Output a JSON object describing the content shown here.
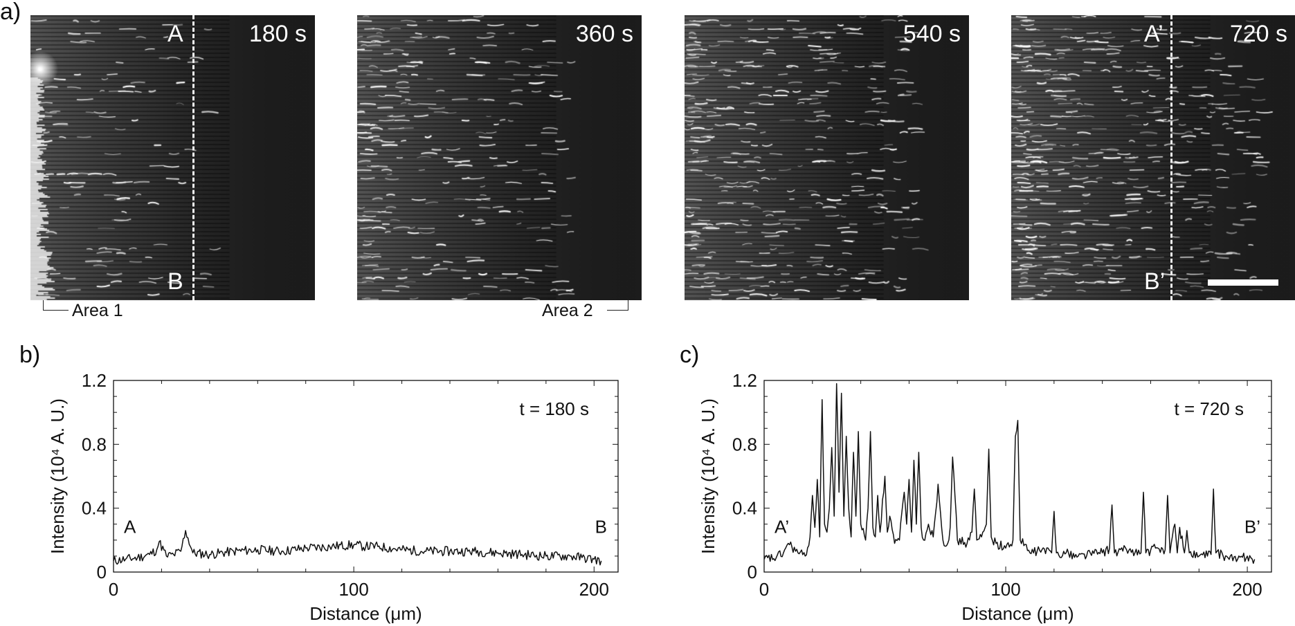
{
  "panel_labels": {
    "a": "a)",
    "b": "b)",
    "c": "c)"
  },
  "micrographs": [
    {
      "time": "180 s",
      "top_marker": "A",
      "bottom_marker": "B",
      "dashed_line": true
    },
    {
      "time": "360 s"
    },
    {
      "time": "540 s"
    },
    {
      "time": "720 s",
      "top_marker": "A’",
      "bottom_marker": "B’",
      "dashed_line": true,
      "scale_bar": true
    }
  ],
  "area_labels": {
    "area1": "Area 1",
    "area2": "Area 2"
  },
  "colors": {
    "micrograph_background": "#1c1c1c",
    "feature": "#ffffff",
    "line": "#111111"
  },
  "chart_data": [
    {
      "type": "line",
      "panel": "b)",
      "annotation": "t = 180 s",
      "xlabel": "Distance (μm)",
      "ylabel": "Intensity (10⁴ A. U.)",
      "xlim": [
        0,
        210
      ],
      "ylim": [
        0,
        1.2
      ],
      "xticks": [
        "0",
        "100",
        "200"
      ],
      "yticks": [
        "0",
        "0.4",
        "0.8",
        "1.2"
      ],
      "end_labels": {
        "start": "A",
        "end": "B"
      },
      "grid": false,
      "series": [
        {
          "x": [
            0,
            5,
            10,
            15,
            18,
            19,
            22,
            25,
            28,
            30,
            33,
            40,
            50,
            60,
            70,
            80,
            90,
            100,
            105,
            110,
            120,
            130,
            140,
            150,
            160,
            170,
            180,
            190,
            195,
            200,
            203
          ],
          "y": [
            0.07,
            0.08,
            0.09,
            0.11,
            0.14,
            0.19,
            0.1,
            0.11,
            0.13,
            0.26,
            0.12,
            0.11,
            0.13,
            0.14,
            0.13,
            0.15,
            0.16,
            0.17,
            0.16,
            0.16,
            0.14,
            0.13,
            0.13,
            0.13,
            0.12,
            0.11,
            0.1,
            0.1,
            0.09,
            0.08,
            0.07
          ]
        }
      ]
    },
    {
      "type": "line",
      "panel": "c)",
      "annotation": "t = 720 s",
      "xlabel": "Distance (μm)",
      "ylabel": "Intensity (10⁴ A. U.)",
      "xlim": [
        0,
        210
      ],
      "ylim": [
        0,
        1.2
      ],
      "xticks": [
        "0",
        "100",
        "200"
      ],
      "yticks": [
        "0",
        "0.4",
        "0.8",
        "1.2"
      ],
      "end_labels": {
        "start": "A’",
        "end": "B’"
      },
      "grid": false,
      "series": [
        {
          "x": [
            0,
            5,
            8,
            10,
            14,
            17,
            19,
            20,
            21,
            22,
            23,
            24,
            25,
            26,
            27,
            28,
            29,
            30,
            31,
            32,
            33,
            34,
            35,
            36,
            37,
            38,
            39,
            40,
            42,
            43,
            44,
            45,
            46,
            47,
            48,
            50,
            51,
            52,
            54,
            56,
            58,
            59,
            60,
            61,
            62,
            63,
            64,
            65,
            66,
            68,
            70,
            72,
            74,
            76,
            77,
            78,
            80,
            84,
            86,
            87,
            88,
            90,
            92,
            93,
            94,
            96,
            100,
            103,
            104,
            105,
            106,
            110,
            115,
            119,
            120,
            121,
            125,
            130,
            135,
            140,
            143,
            144,
            145,
            150,
            156,
            157,
            158,
            162,
            166,
            167,
            168,
            170,
            171,
            172,
            174,
            175,
            176,
            180,
            185,
            186,
            187,
            192,
            196,
            200,
            203
          ],
          "y": [
            0.08,
            0.09,
            0.12,
            0.18,
            0.12,
            0.1,
            0.22,
            0.48,
            0.28,
            0.58,
            0.22,
            1.08,
            0.3,
            0.25,
            0.4,
            0.78,
            0.35,
            1.18,
            0.5,
            1.12,
            0.35,
            0.85,
            0.4,
            0.22,
            0.75,
            0.35,
            0.88,
            0.3,
            0.2,
            0.4,
            0.88,
            0.28,
            0.22,
            0.48,
            0.25,
            0.6,
            0.25,
            0.35,
            0.18,
            0.2,
            0.5,
            0.3,
            0.58,
            0.25,
            0.7,
            0.3,
            0.75,
            0.28,
            0.2,
            0.3,
            0.22,
            0.55,
            0.2,
            0.18,
            0.28,
            0.72,
            0.2,
            0.18,
            0.25,
            0.52,
            0.2,
            0.22,
            0.3,
            0.77,
            0.22,
            0.18,
            0.15,
            0.2,
            0.85,
            0.95,
            0.2,
            0.12,
            0.14,
            0.12,
            0.38,
            0.12,
            0.12,
            0.1,
            0.12,
            0.12,
            0.15,
            0.42,
            0.12,
            0.14,
            0.12,
            0.5,
            0.12,
            0.15,
            0.14,
            0.48,
            0.12,
            0.3,
            0.12,
            0.28,
            0.12,
            0.26,
            0.12,
            0.1,
            0.11,
            0.52,
            0.12,
            0.09,
            0.08,
            0.1,
            0.08
          ]
        }
      ]
    }
  ]
}
